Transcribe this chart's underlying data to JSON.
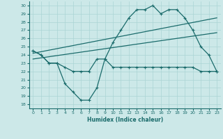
{
  "xlabel": "Humidex (Indice chaleur)",
  "bg_color": "#cce8e8",
  "line_color": "#1a6b6b",
  "grid_color": "#aad4d4",
  "x_ticks": [
    0,
    1,
    2,
    3,
    4,
    5,
    6,
    7,
    8,
    9,
    10,
    11,
    12,
    13,
    14,
    15,
    16,
    17,
    18,
    19,
    20,
    21,
    22,
    23
  ],
  "y_ticks": [
    18,
    19,
    20,
    21,
    22,
    23,
    24,
    25,
    26,
    27,
    28,
    29,
    30
  ],
  "ylim": [
    17.5,
    30.5
  ],
  "xlim": [
    -0.5,
    23.5
  ],
  "line1_x": [
    0,
    1,
    2,
    3,
    4,
    5,
    6,
    7,
    8,
    9,
    10,
    11,
    12,
    13,
    14,
    15,
    16,
    17,
    18,
    19,
    20,
    21,
    22,
    23
  ],
  "line1_y": [
    24.5,
    24.0,
    23.0,
    23.0,
    20.5,
    19.5,
    18.5,
    18.5,
    20.0,
    23.5,
    22.5,
    22.5,
    22.5,
    22.5,
    22.5,
    22.5,
    22.5,
    22.5,
    22.5,
    22.5,
    22.5,
    22.0,
    22.0,
    22.0
  ],
  "line2_x": [
    0,
    1,
    2,
    3,
    4,
    5,
    6,
    7,
    8,
    9,
    10,
    11,
    12,
    13,
    14,
    15,
    16,
    17,
    18,
    19,
    20,
    21,
    22,
    23
  ],
  "line2_y": [
    24.5,
    24.0,
    23.0,
    23.0,
    22.5,
    22.0,
    22.0,
    22.0,
    23.5,
    23.5,
    25.5,
    27.0,
    28.5,
    29.5,
    29.5,
    30.0,
    29.0,
    29.5,
    29.5,
    28.5,
    27.0,
    25.0,
    24.0,
    22.0
  ],
  "line3_x": [
    0,
    23
  ],
  "line3_y": [
    24.2,
    28.5
  ],
  "line4_x": [
    0,
    23
  ],
  "line4_y": [
    23.5,
    26.7
  ]
}
